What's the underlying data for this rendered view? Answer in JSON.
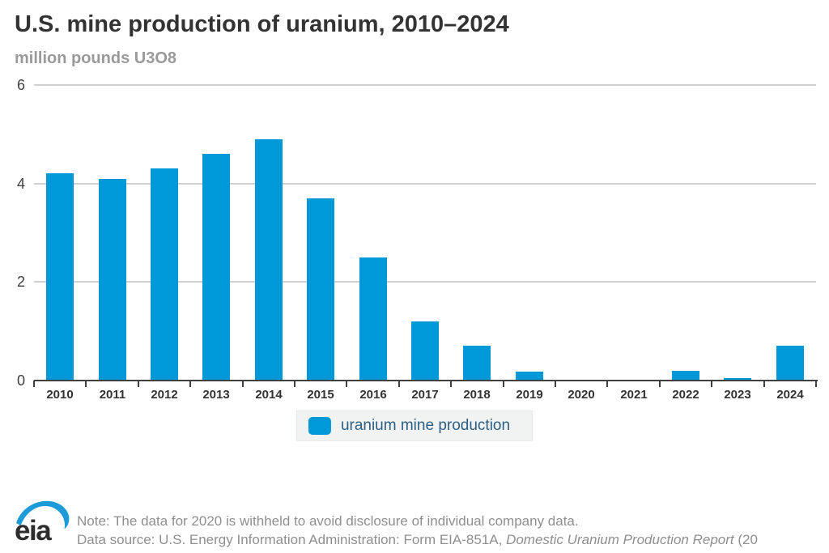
{
  "header": {
    "title": "U.S. mine production of uranium, 2010–2024",
    "subtitle": "million pounds U3O8"
  },
  "chart_data": {
    "type": "bar",
    "title": "U.S. mine production of uranium, 2010–2024",
    "ylabel": "million pounds U3O8",
    "xlabel": "",
    "categories": [
      "2010",
      "2011",
      "2012",
      "2013",
      "2014",
      "2015",
      "2016",
      "2017",
      "2018",
      "2019",
      "2020",
      "2021",
      "2022",
      "2023",
      "2024"
    ],
    "values": [
      4.2,
      4.1,
      4.3,
      4.6,
      4.9,
      3.7,
      2.5,
      1.2,
      0.7,
      0.18,
      null,
      0.01,
      0.19,
      0.05,
      0.7
    ],
    "series_name": "uranium mine production",
    "ylim": [
      0,
      6
    ],
    "yticks": [
      0,
      2,
      4,
      6
    ],
    "grid": "horizontal gridlines at yticks, drawn behind bars",
    "legend_position": "bottom-center",
    "note": "2020 value withheld (no bar drawn)"
  },
  "legend": {
    "label": "uranium mine production"
  },
  "footer": {
    "note": "Note: The data for 2020 is withheld to avoid disclosure of individual company data.",
    "source_prefix": "Data source: U.S. Energy Information Administration: Form EIA-851A, ",
    "source_italic": "Domestic Uranium Production Report",
    "source_suffix": " (20"
  },
  "logo": {
    "text": "eia"
  },
  "colors": {
    "bar": "#0099d8",
    "title_text": "#333333",
    "subtitle_text": "#9a9a9a",
    "axis": "#404040",
    "gridline": "#d0d0d0",
    "legend_bg": "#f1f2f2",
    "legend_text": "#2e6086",
    "footer_text": "#8f8f8f",
    "logo_swoosh": "#1d9bd8",
    "logo_text": "#2d2d2d"
  }
}
